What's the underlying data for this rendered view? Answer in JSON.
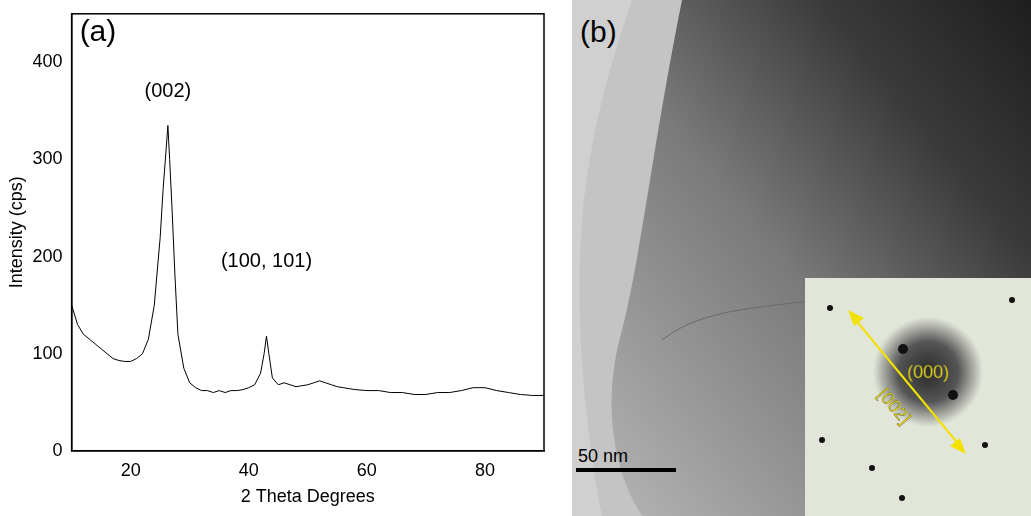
{
  "chart_data": {
    "type": "line",
    "panel_label": "(a)",
    "x_label": "2 Theta Degrees",
    "y_label": "Intensity (cps)",
    "x": [
      10,
      11,
      12,
      13,
      14,
      15,
      16,
      17,
      18,
      19,
      20,
      21,
      22,
      23,
      24,
      25,
      25.5,
      26,
      26.3,
      26.6,
      27,
      27.5,
      28,
      29,
      30,
      31,
      32,
      33,
      34,
      35,
      36,
      37,
      38,
      39,
      40,
      41,
      42,
      42.6,
      43,
      43.4,
      44,
      45,
      46,
      47,
      48,
      49,
      50,
      51,
      52,
      53,
      54,
      55,
      56,
      57,
      58,
      60,
      62,
      64,
      66,
      68,
      70,
      72,
      74,
      76,
      78,
      80,
      82,
      84,
      86,
      88,
      90
    ],
    "values": [
      150,
      130,
      120,
      115,
      110,
      105,
      100,
      95,
      93,
      92,
      92,
      95,
      100,
      115,
      150,
      220,
      270,
      310,
      335,
      300,
      250,
      180,
      120,
      85,
      70,
      65,
      62,
      62,
      60,
      62,
      60,
      62,
      62,
      63,
      65,
      68,
      80,
      100,
      118,
      100,
      75,
      68,
      70,
      68,
      66,
      67,
      68,
      70,
      72,
      70,
      68,
      66,
      65,
      64,
      63,
      62,
      62,
      60,
      60,
      58,
      58,
      60,
      60,
      62,
      65,
      65,
      62,
      60,
      58,
      57,
      57
    ],
    "color": "#000000",
    "xlim": [
      10,
      90
    ],
    "xticks": [
      20,
      40,
      60,
      80
    ],
    "ylim": [
      0,
      450
    ],
    "yticks": [
      0,
      100,
      200,
      300,
      400
    ],
    "grid": false,
    "annotations": [
      {
        "text": "(002)",
        "x": 26.3,
        "y": 360
      },
      {
        "text": "(100, 101)",
        "x": 43,
        "y": 185
      }
    ]
  },
  "image_panel": {
    "panel_label": "(b)",
    "scale_bar": "50 nm",
    "inset": {
      "center_label": "(000)",
      "direction_label": "[002]"
    }
  }
}
